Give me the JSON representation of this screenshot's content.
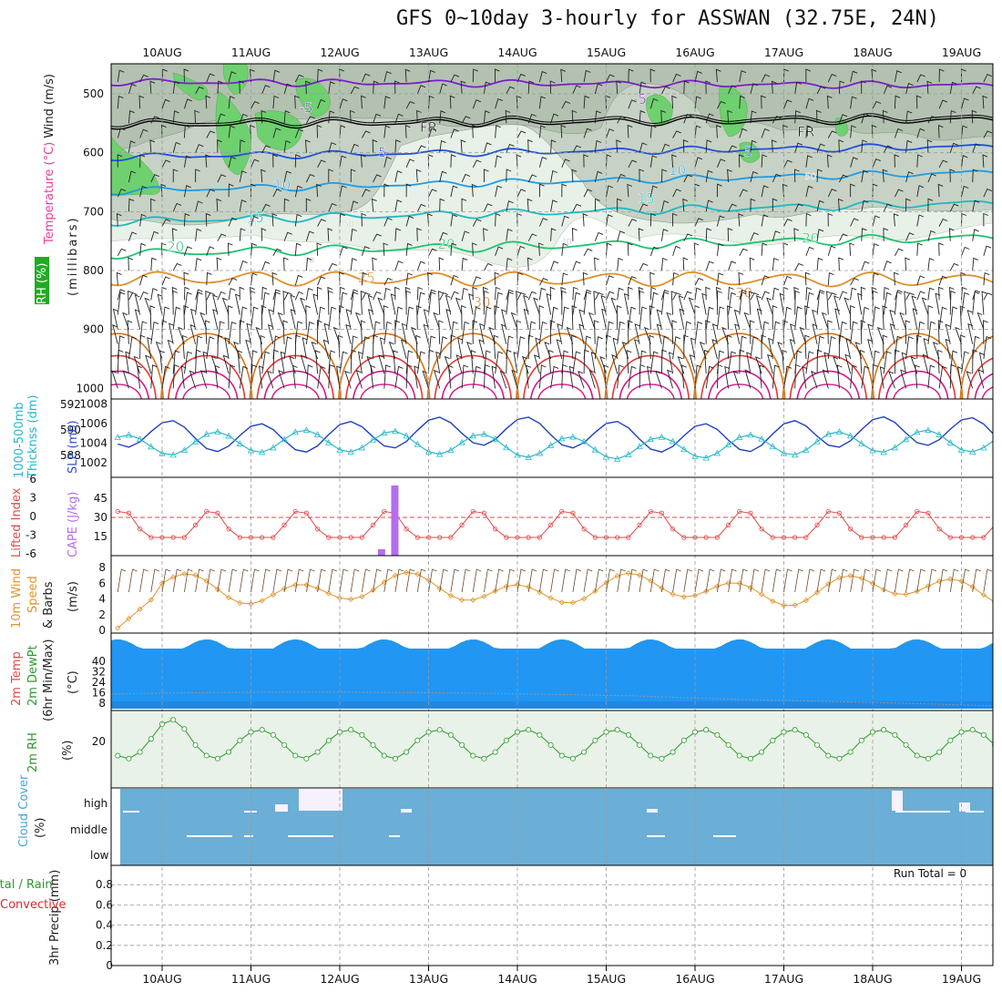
{
  "title": "GFS 0~10day 3-hourly for ASSWAN (32.75E, 24N)",
  "colors": {
    "rh_light": "#e8f1e7",
    "rh_mid": "#c6d2c4",
    "rh_green": "#6fd06f",
    "temp_violet": "#7b1fc8",
    "temp_fr": "#000000",
    "temp_blue": "#1f4fe0",
    "temp_sky": "#1e9be6",
    "temp_teal": "#1bb9c3",
    "temp_green": "#1ec36e",
    "temp_orange": "#e0902a",
    "temp_darkorange": "#d87416",
    "temp_red": "#e03a3a",
    "temp_magenta": "#d11a8a",
    "slp": "#1f3fc0",
    "thickness": "#2ab9c9",
    "lifted": "#e04848",
    "cape": "#b56cf0",
    "wind": "#e0942a",
    "rh2m": "#2a9a2a",
    "cloud": "#6baed6",
    "precip_total": "#2a9a2a",
    "precip_conv": "#e02a2a"
  },
  "dates": [
    "10AUG",
    "11AUG",
    "12AUG",
    "13AUG",
    "14AUG",
    "15AUG",
    "16AUG",
    "17AUG",
    "18AUG",
    "19AUG"
  ],
  "chart_data": [
    {
      "panel": "upper-air",
      "type": "contour",
      "ylabel_parts": [
        "Wind (m/s)",
        "Temperature (°C)",
        "RH (%)",
        "(millibars)"
      ],
      "y_ticks": [
        500,
        600,
        700,
        800,
        900,
        1000
      ],
      "contour_labels": [
        {
          "day": 1.62,
          "p": 524,
          "text": "-5",
          "c": "temp_violet"
        },
        {
          "day": 5.38,
          "p": 509,
          "text": "-5",
          "c": "temp_violet"
        },
        {
          "day": 3.0,
          "p": 557,
          "text": "FR",
          "c": "temp_fr"
        },
        {
          "day": 7.25,
          "p": 565,
          "text": "FR",
          "c": "temp_fr"
        },
        {
          "day": 2.48,
          "p": 600,
          "text": "5",
          "c": "temp_blue"
        },
        {
          "day": 6.6,
          "p": 598,
          "text": "5",
          "c": "temp_blue"
        },
        {
          "day": 1.35,
          "p": 655,
          "text": "10",
          "c": "temp_sky"
        },
        {
          "day": 5.8,
          "p": 630,
          "text": "10",
          "c": "temp_sky"
        },
        {
          "day": 5.45,
          "p": 678,
          "text": "15",
          "c": "temp_teal"
        },
        {
          "day": 1.05,
          "p": 710,
          "text": "15",
          "c": "temp_teal"
        },
        {
          "day": 0.15,
          "p": 760,
          "text": "20",
          "c": "temp_green"
        },
        {
          "day": 3.2,
          "p": 755,
          "text": "20",
          "c": "temp_green"
        },
        {
          "day": 7.3,
          "p": 745,
          "text": "20",
          "c": "temp_green"
        },
        {
          "day": 2.3,
          "p": 812,
          "text": "25",
          "c": "temp_orange"
        },
        {
          "day": 3.6,
          "p": 854,
          "text": "30",
          "c": "temp_darkorange"
        },
        {
          "day": 6.55,
          "p": 838,
          "text": "30",
          "c": "temp_darkorange"
        },
        {
          "day": 1.0,
          "p": 718,
          "text": "50",
          "c": "rh_text"
        },
        {
          "day": 2.1,
          "p": 718,
          "text": "50",
          "c": "rh_text"
        },
        {
          "day": 1.65,
          "p": 780,
          "text": "30",
          "c": "rh_text"
        },
        {
          "day": 4.55,
          "p": 748,
          "text": "30",
          "c": "rh_text"
        },
        {
          "day": 7.3,
          "p": 638,
          "text": "50",
          "c": "rh_text"
        }
      ]
    },
    {
      "panel": "pressure",
      "type": "line",
      "ylabel": [
        "1000-500mb",
        "Thicknss (dm)",
        "SLP (mb)"
      ],
      "left_ticks": [
        588,
        590,
        592
      ],
      "right_ticks": [
        1002,
        1004,
        1006,
        1008
      ],
      "slp_range": "1002-1007",
      "thickness_range": "588-591"
    },
    {
      "panel": "stability",
      "type": "line+bar",
      "ylabel": [
        "Lifted Index",
        "CAPE (J/kg)"
      ],
      "li_ticks": [
        -6,
        -3,
        0,
        3,
        6
      ],
      "li_labels": [
        "-6",
        "-3",
        "0",
        "3",
        "6"
      ],
      "cape_ticks": [
        15,
        30,
        45
      ],
      "cape_bars": [
        {
          "day": 2.47,
          "value": 5
        },
        {
          "day": 2.62,
          "value": 55
        }
      ]
    },
    {
      "panel": "wind10m",
      "type": "line",
      "ylabel": [
        "10m Wind",
        "Speed",
        "& Barbs",
        "(m/s)"
      ],
      "y_ticks": [
        0,
        2,
        4,
        6,
        8
      ],
      "start_value": 0.3,
      "typical_range": [
        4,
        8
      ]
    },
    {
      "panel": "temp2m",
      "type": "area",
      "ylabel": [
        "2m Temp",
        "2m DewPt",
        "(6hr Min/Max)",
        "(°C)"
      ],
      "y_ticks": [
        8,
        16,
        24,
        32,
        40
      ],
      "temp_min": 32,
      "temp_max": 43,
      "dewpoint": 9
    },
    {
      "panel": "rh2m",
      "type": "line",
      "ylabel": [
        "2m RH",
        "(%)"
      ],
      "y_ticks": [
        20
      ],
      "peak_values": [
        28,
        24,
        22,
        20,
        22,
        20,
        21,
        21,
        24,
        20
      ]
    },
    {
      "panel": "cloud",
      "type": "bar",
      "ylabel": [
        "Cloud Cover",
        "(%)"
      ],
      "levels": [
        "high",
        "middle",
        "low"
      ],
      "cover_pct": 100
    },
    {
      "panel": "precip",
      "type": "bar",
      "ylabel": [
        "3hr Precip (mm)",
        "Total / Rain",
        "Convective"
      ],
      "y_ticks": [
        0,
        0.2,
        0.4,
        0.6,
        0.8
      ],
      "y_tick_labels": [
        "0",
        "0.2",
        "0.4",
        "0.6",
        "0.8"
      ],
      "run_total_label": "Run Total = 0",
      "values": []
    }
  ]
}
